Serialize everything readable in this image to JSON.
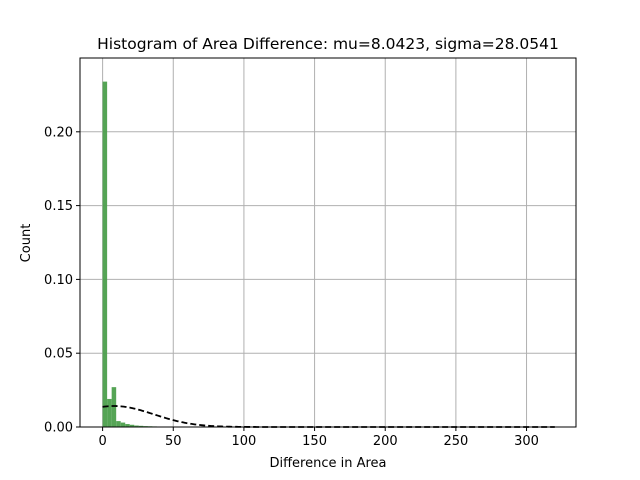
{
  "chart_data": {
    "type": "bar",
    "title": "Histogram of Area Difference: mu=8.0423, sigma=28.0541",
    "xlabel": "Difference in Area",
    "ylabel": "Count",
    "xlim": [
      -16,
      335
    ],
    "ylim": [
      0,
      0.25
    ],
    "grid": true,
    "x_ticks": [
      0,
      50,
      100,
      150,
      200,
      250,
      300
    ],
    "x_tick_labels": [
      "0",
      "50",
      "100",
      "150",
      "200",
      "250",
      "300"
    ],
    "y_ticks": [
      0.0,
      0.05,
      0.1,
      0.15,
      0.2
    ],
    "y_tick_labels": [
      "0.00",
      "0.05",
      "0.10",
      "0.15",
      "0.20"
    ],
    "bar_color": "#4c9f4c",
    "bin_width": 3.2,
    "series": [
      {
        "bin_starts": [
          0,
          3.2,
          6.4,
          9.6,
          12.8,
          16,
          19.2,
          22.4,
          25.6,
          28.8,
          32,
          35.2,
          38.4,
          41.6,
          44.8,
          48,
          51.2
        ],
        "values": [
          0.234,
          0.019,
          0.027,
          0.004,
          0.003,
          0.002,
          0.0015,
          0.001,
          0.0008,
          0.0006,
          0.0005,
          0.0004,
          0.0003,
          0.0003,
          0.0002,
          0.0002,
          0.0001
        ]
      }
    ],
    "normal_curve": {
      "mu": 8.0423,
      "sigma": 28.0541,
      "x_range": [
        0,
        320
      ],
      "color": "#000000",
      "style": "dashed"
    }
  }
}
